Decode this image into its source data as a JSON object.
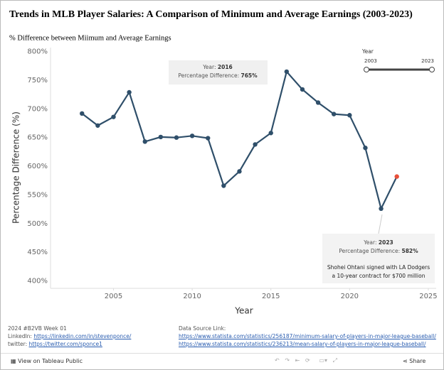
{
  "chart_data": {
    "type": "line",
    "title": "Trends in MLB Player Salaries: A Comparison of Minimum and Average Earnings (2003-2023)",
    "subtitle": "% Difference between Miimum and Average Earnings",
    "x_label": "Year",
    "y_label": "Percentage Difference (%)",
    "x": [
      2003,
      2004,
      2005,
      2006,
      2007,
      2008,
      2009,
      2010,
      2011,
      2012,
      2013,
      2014,
      2015,
      2016,
      2017,
      2018,
      2019,
      2020,
      2021,
      2022,
      2023
    ],
    "values": [
      692,
      671,
      686,
      729,
      643,
      651,
      650,
      653,
      649,
      566,
      591,
      638,
      658,
      765,
      734,
      711,
      691,
      689,
      632,
      526,
      582
    ],
    "color": "#2f4f6a",
    "highlight_color": "#e8503a",
    "xlim": [
      2001,
      2025.5
    ],
    "xticks": [
      2005,
      2010,
      2015,
      2020,
      2025
    ],
    "ylim": [
      387,
      807
    ],
    "yticks": [
      {
        "value": 400,
        "label": "400%"
      },
      {
        "value": 450,
        "label": "450%"
      },
      {
        "value": 500,
        "label": "500%"
      },
      {
        "value": 550,
        "label": "550%"
      },
      {
        "value": 600,
        "label": "600%"
      },
      {
        "value": 650,
        "label": "650%"
      },
      {
        "value": 700,
        "label": "700%"
      },
      {
        "value": 750,
        "label": "750%"
      },
      {
        "value": 800,
        "label": "800%"
      }
    ],
    "grid": false
  },
  "annotations": [
    {
      "rows": [
        {
          "label": "Year:",
          "value": "2016"
        },
        {
          "label": "Percentage Difference:",
          "value": "765%"
        }
      ]
    },
    {
      "rows": [
        {
          "label": "Year:",
          "value": "2023"
        },
        {
          "label": "Percentage Difference:",
          "value": "582%"
        }
      ],
      "note": [
        "Shohei Ohtani signed with LA Dodgers",
        "a 10-year contract for $700 million"
      ]
    }
  ],
  "filter": {
    "title": "Year",
    "min_label": "2003",
    "max_label": "2023"
  },
  "footer": {
    "tag": "2024 #B2VB Week 01",
    "linkedin_label": "LinkedIn:",
    "linkedin_url": "https://linkedin.com/in/stevenponce/",
    "twitter_label": "twitter:",
    "twitter_url": "https://twitter.com/sponce1",
    "source_label": "Data Source Link:",
    "sources": [
      "https://www.statista.com/statistics/256187/minimum-salary-of-players-in-major-league-baseball/",
      "https://www.statista.com/statistics/236213/mean-salary-of-players-in-major-league-baseball/"
    ]
  },
  "toolbar": {
    "view": "View on Tableau Public",
    "share": "Share"
  }
}
